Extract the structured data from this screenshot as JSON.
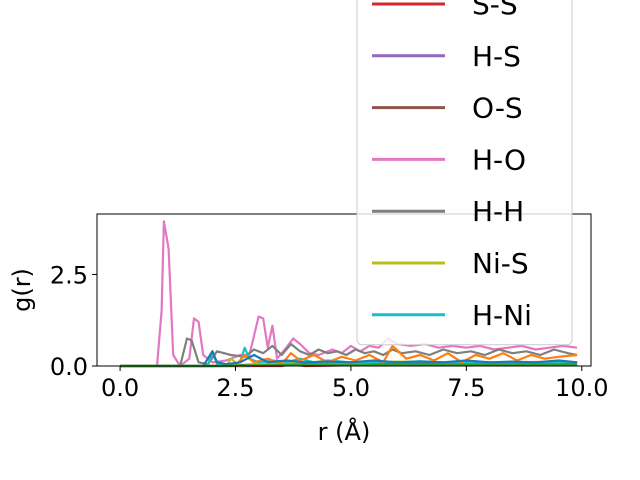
{
  "chart_data": {
    "type": "line",
    "title": "",
    "xlabel": "r (Å)",
    "ylabel": "g(r)",
    "xlim": [
      -0.5,
      10.2
    ],
    "ylim": [
      0,
      4.15
    ],
    "xticks": [
      0.0,
      2.5,
      5.0,
      7.5,
      10.0
    ],
    "xtick_labels": [
      "0.0",
      "2.5",
      "5.0",
      "7.5",
      "10.0"
    ],
    "yticks": [
      0.0,
      2.5
    ],
    "ytick_labels": [
      "0.0",
      "2.5"
    ],
    "grid": false,
    "legend_placement": "upper-right",
    "series": [
      {
        "name": "S-S",
        "color": "#d62728",
        "x": [
          0,
          1,
          2,
          3,
          3.5,
          3.7,
          4,
          5,
          6,
          7,
          8,
          9,
          9.9
        ],
        "y": [
          0,
          0,
          0,
          0,
          0,
          0.05,
          0,
          0.02,
          0.05,
          0.03,
          0.02,
          0.04,
          0.05
        ]
      },
      {
        "name": "H-S",
        "color": "#9467bd",
        "x": [
          0,
          1,
          2,
          2.8,
          3.0,
          3.2,
          4,
          5,
          6,
          7,
          8,
          9,
          9.9
        ],
        "y": [
          0,
          0,
          0,
          0,
          0.05,
          0.02,
          0.04,
          0.06,
          0.08,
          0.06,
          0.07,
          0.06,
          0.08
        ]
      },
      {
        "name": "O-S",
        "color": "#8c564b",
        "x": [
          0,
          1,
          1.5,
          2,
          2.5,
          3,
          3.5,
          4,
          5,
          6,
          7,
          8,
          9,
          9.9
        ],
        "y": [
          0,
          0,
          0,
          0,
          0.02,
          0.05,
          0.08,
          0.04,
          0.06,
          0.05,
          0.06,
          0.05,
          0.06,
          0.05
        ]
      },
      {
        "name": "H-O",
        "color": "#e377c2",
        "x": [
          0,
          0.5,
          0.8,
          0.9,
          0.95,
          1.05,
          1.15,
          1.3,
          1.5,
          1.6,
          1.7,
          1.8,
          2.0,
          2.3,
          2.6,
          2.8,
          3.0,
          3.1,
          3.2,
          3.3,
          3.4,
          3.6,
          3.75,
          3.9,
          4.1,
          4.3,
          4.6,
          4.8,
          5.0,
          5.2,
          5.4,
          5.6,
          5.8,
          6.0,
          6.3,
          6.6,
          6.9,
          7.2,
          7.5,
          7.8,
          8.1,
          8.4,
          8.7,
          9.0,
          9.3,
          9.6,
          9.9
        ],
        "y": [
          0,
          0,
          0,
          1.5,
          3.95,
          3.2,
          0.3,
          0,
          0.2,
          1.3,
          1.2,
          0.3,
          0.1,
          0.15,
          0.3,
          0.3,
          1.35,
          1.3,
          0.5,
          1.1,
          0.2,
          0.5,
          0.75,
          0.6,
          0.35,
          0.3,
          0.45,
          0.35,
          0.55,
          0.4,
          0.55,
          0.5,
          0.75,
          0.6,
          0.55,
          0.6,
          0.5,
          0.55,
          0.5,
          0.55,
          0.45,
          0.5,
          0.55,
          0.45,
          0.5,
          0.55,
          0.5
        ]
      },
      {
        "name": "H-H",
        "color": "#7f7f7f",
        "x": [
          0,
          0.5,
          1.0,
          1.3,
          1.45,
          1.55,
          1.7,
          1.9,
          2.1,
          2.4,
          2.7,
          2.9,
          3.1,
          3.3,
          3.5,
          3.7,
          3.9,
          4.1,
          4.3,
          4.5,
          4.7,
          4.9,
          5.1,
          5.3,
          5.5,
          5.7,
          5.9,
          6.1,
          6.4,
          6.7,
          7.0,
          7.3,
          7.6,
          7.9,
          8.2,
          8.5,
          8.8,
          9.1,
          9.4,
          9.7,
          9.9
        ],
        "y": [
          0,
          0,
          0,
          0,
          0.75,
          0.7,
          0.1,
          0.05,
          0.4,
          0.3,
          0.25,
          0.45,
          0.35,
          0.55,
          0.3,
          0.6,
          0.4,
          0.3,
          0.45,
          0.35,
          0.4,
          0.3,
          0.45,
          0.35,
          0.4,
          0.3,
          0.45,
          0.35,
          0.4,
          0.3,
          0.45,
          0.35,
          0.4,
          0.3,
          0.45,
          0.35,
          0.4,
          0.3,
          0.45,
          0.35,
          0.3
        ]
      },
      {
        "name": "Ni-S",
        "color": "#bcbd22",
        "x": [
          0,
          1,
          2,
          2.3,
          2.4,
          2.6,
          3,
          4,
          5,
          6,
          7,
          8,
          9,
          9.9
        ],
        "y": [
          0,
          0,
          0,
          0,
          0.2,
          0,
          0.05,
          0.1,
          0.08,
          0.12,
          0.1,
          0.09,
          0.11,
          0.1
        ]
      },
      {
        "name": "H-Ni",
        "color": "#17becf",
        "x": [
          0,
          1,
          1.5,
          1.9,
          2.0,
          2.1,
          2.4,
          2.6,
          2.7,
          2.8,
          3.0,
          3.3,
          3.6,
          3.9,
          4.2,
          4.5,
          5.0,
          5.5,
          6.0,
          6.5,
          7.0,
          7.5,
          8.0,
          8.5,
          9.0,
          9.5,
          9.9
        ],
        "y": [
          0,
          0,
          0,
          0,
          0.4,
          0.05,
          0.05,
          0.1,
          0.5,
          0.2,
          0.1,
          0.15,
          0.1,
          0.2,
          0.1,
          0.15,
          0.1,
          0.12,
          0.1,
          0.13,
          0.1,
          0.12,
          0.1,
          0.11,
          0.1,
          0.12,
          0.1
        ]
      },
      {
        "name": "",
        "color": "#ff7f0e",
        "x": [
          0,
          1,
          2,
          2.5,
          2.7,
          2.9,
          3.2,
          3.5,
          3.7,
          3.9,
          4.2,
          4.5,
          4.8,
          5.1,
          5.4,
          5.7,
          5.9,
          6.2,
          6.5,
          6.8,
          7.1,
          7.4,
          7.7,
          8.0,
          8.3,
          8.6,
          8.9,
          9.2,
          9.5,
          9.9
        ],
        "y": [
          0,
          0,
          0,
          0,
          0.3,
          0.1,
          0.2,
          0.05,
          0.35,
          0.15,
          0.3,
          0.1,
          0.25,
          0.15,
          0.3,
          0.1,
          0.55,
          0.2,
          0.3,
          0.15,
          0.35,
          0.1,
          0.3,
          0.2,
          0.35,
          0.15,
          0.3,
          0.2,
          0.25,
          0.3
        ]
      },
      {
        "name": "",
        "color": "#1f77b4",
        "x": [
          0,
          1,
          1.8,
          2.0,
          2.1,
          2.3,
          2.6,
          2.9,
          3.2,
          3.6,
          4.0,
          4.5,
          5.0,
          5.5,
          6.0,
          6.5,
          7.0,
          7.5,
          8.0,
          8.5,
          9.0,
          9.5,
          9.9
        ],
        "y": [
          0,
          0,
          0,
          0.4,
          0.1,
          0.05,
          0.1,
          0.3,
          0.1,
          0.15,
          0.1,
          0.12,
          0.1,
          0.15,
          0.1,
          0.12,
          0.1,
          0.15,
          0.1,
          0.12,
          0.1,
          0.15,
          0.1
        ]
      },
      {
        "name": "",
        "color": "#2ca02c",
        "x": [
          0,
          1,
          2,
          3,
          4,
          5,
          6,
          7,
          8,
          9,
          9.9
        ],
        "y": [
          0,
          0,
          0,
          0.02,
          0.05,
          0.03,
          0.06,
          0.04,
          0.05,
          0.04,
          0.05
        ]
      }
    ]
  }
}
